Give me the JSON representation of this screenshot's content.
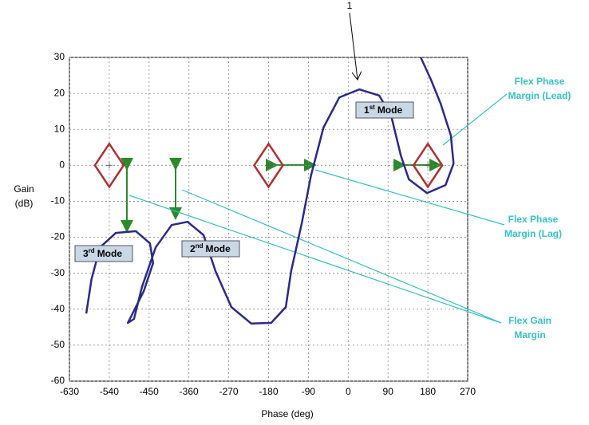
{
  "chart_data": {
    "type": "line",
    "x_label": "Phase (deg)",
    "y_label": [
      "Gain",
      "(dB)"
    ],
    "top_marker": "1",
    "series": [
      {
        "color": "#2a2a8c",
        "x": [
          -592,
          -580,
          -561,
          -525,
          -480,
          -448,
          -441,
          -462,
          -489,
          -498,
          -484,
          -466,
          -435,
          -399,
          -363,
          -327,
          -300,
          -264,
          -219,
          -174,
          -141,
          -129,
          -105,
          -84,
          -56,
          -20,
          25,
          70,
          97,
          119,
          137,
          178,
          220,
          238,
          232,
          209,
          187,
          164
        ],
        "values": [
          -41.2,
          -31.6,
          -22.8,
          -18.8,
          -18.3,
          -21.7,
          -27.2,
          -35,
          -41.6,
          -43.8,
          -42.7,
          -33.8,
          -22.8,
          -16.6,
          -15.7,
          -19.4,
          -29.4,
          -39.4,
          -44,
          -43.8,
          -39.4,
          -29.4,
          -16.1,
          -2.8,
          10.5,
          18.9,
          21.1,
          19.4,
          13.8,
          2.7,
          -3.9,
          -7.7,
          -5.5,
          0.5,
          8.3,
          17.1,
          23.8,
          30
        ]
      }
    ],
    "critical_points": {
      "x": [
        -540,
        -180,
        180
      ],
      "y": [
        0,
        0,
        0
      ],
      "color": "#b03030"
    },
    "modes": [
      {
        "number": "1",
        "suffix": "st",
        "text": "Mode"
      },
      {
        "number": "2",
        "suffix": "nd",
        "text": "Mode"
      },
      {
        "number": "3",
        "suffix": "rd",
        "text": "Mode"
      }
    ],
    "notes": [
      [
        "Flex Phase",
        "Margin (Lead)"
      ],
      [
        "Flex Phase",
        "Margin (Lag)"
      ],
      [
        "Flex Gain",
        "Margin"
      ]
    ],
    "xlim": [
      -630,
      270
    ],
    "ylim": [
      -60,
      30
    ],
    "xticks": [
      -630,
      -540,
      -450,
      -360,
      -270,
      -180,
      -90,
      0,
      90,
      180,
      270
    ],
    "yticks": [
      -60,
      -50,
      -40,
      -30,
      -20,
      -10,
      0,
      10,
      20,
      30
    ],
    "grid": true
  }
}
